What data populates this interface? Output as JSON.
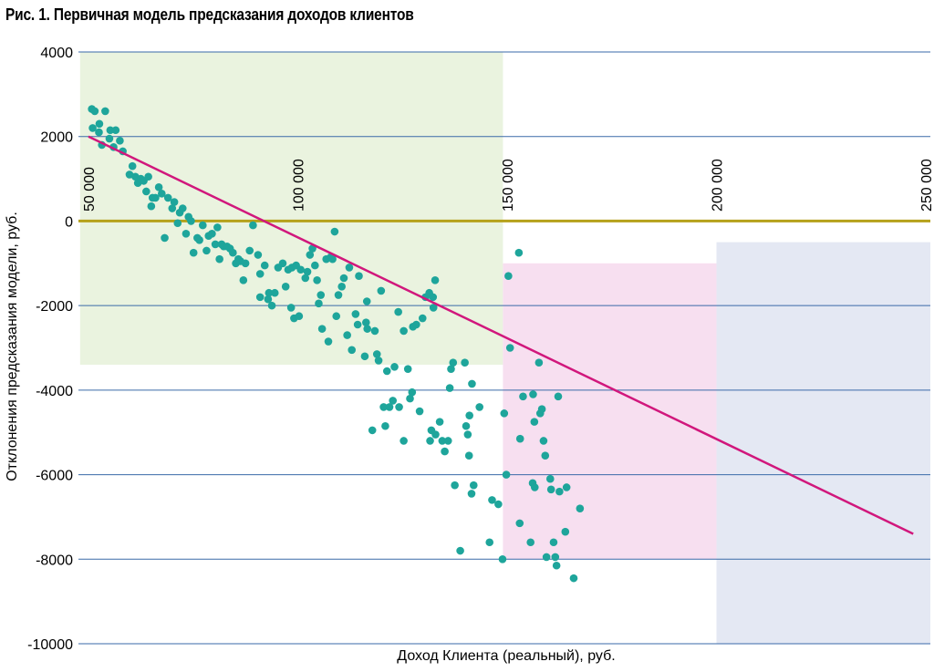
{
  "chart_data": {
    "type": "scatter",
    "title": "Рис. 1. Первичная модель предсказания доходов клиентов",
    "xlabel": "Доход Клиента (реальный), руб.",
    "ylabel": "Отклонения предсказания модели, руб.",
    "xlim": [
      48000,
      252000
    ],
    "ylim": [
      -10500,
      4000
    ],
    "yticks": [
      4000,
      2000,
      0,
      -2000,
      -4000,
      -6000,
      -8000,
      -10000
    ],
    "ytick_labels": [
      "4000",
      "2000",
      "0",
      "-2000",
      "-4000",
      "-6000",
      "-8000",
      "-10000"
    ],
    "xticks": [
      50000,
      100000,
      150000,
      200000,
      250000
    ],
    "xtick_labels": [
      "50 000",
      "100 000",
      "150 000",
      "200 000",
      "250 000"
    ],
    "grid": "horizontal",
    "colors": {
      "points": "#1ea59b",
      "trend": "#d1177c",
      "zero_line": "#b5a11a",
      "grid": "#3a6aa8",
      "region_low": "#eaf3df",
      "region_mid": "#f7dff0",
      "region_high": "#e4e8f3"
    },
    "regions": [
      {
        "name": "low-income",
        "x": [
          48000,
          149000
        ],
        "y": [
          -3400,
          4000
        ]
      },
      {
        "name": "mid-income",
        "x": [
          149000,
          200000
        ],
        "y": [
          -8000,
          -1000
        ]
      },
      {
        "name": "high-income",
        "x": [
          200000,
          252000
        ],
        "y": [
          -10500,
          -500
        ]
      }
    ],
    "trend": {
      "x": [
        50000,
        247000
      ],
      "y": [
        2000,
        -7400
      ]
    },
    "points": [
      {
        "x": 50800,
        "y": 2650
      },
      {
        "x": 51000,
        "y": 2200
      },
      {
        "x": 51500,
        "y": 2600
      },
      {
        "x": 52500,
        "y": 2100
      },
      {
        "x": 52600,
        "y": 2300
      },
      {
        "x": 53200,
        "y": 1800
      },
      {
        "x": 54000,
        "y": 2600
      },
      {
        "x": 55000,
        "y": 1950
      },
      {
        "x": 55200,
        "y": 2150
      },
      {
        "x": 56000,
        "y": 1750
      },
      {
        "x": 56500,
        "y": 2150
      },
      {
        "x": 57500,
        "y": 1900
      },
      {
        "x": 58200,
        "y": 1650
      },
      {
        "x": 59800,
        "y": 1100
      },
      {
        "x": 60500,
        "y": 1300
      },
      {
        "x": 61200,
        "y": 1050
      },
      {
        "x": 61800,
        "y": 900
      },
      {
        "x": 62500,
        "y": 1000
      },
      {
        "x": 63200,
        "y": 950
      },
      {
        "x": 63800,
        "y": 700
      },
      {
        "x": 64300,
        "y": 1050
      },
      {
        "x": 65000,
        "y": 350
      },
      {
        "x": 65300,
        "y": 550
      },
      {
        "x": 66000,
        "y": 550
      },
      {
        "x": 66800,
        "y": 800
      },
      {
        "x": 67500,
        "y": 650
      },
      {
        "x": 68200,
        "y": -400
      },
      {
        "x": 69000,
        "y": 550
      },
      {
        "x": 70000,
        "y": 300
      },
      {
        "x": 70500,
        "y": 450
      },
      {
        "x": 71300,
        "y": -50
      },
      {
        "x": 71800,
        "y": 200
      },
      {
        "x": 72500,
        "y": 300
      },
      {
        "x": 73300,
        "y": -300
      },
      {
        "x": 73900,
        "y": 100
      },
      {
        "x": 74500,
        "y": 0
      },
      {
        "x": 75100,
        "y": -750
      },
      {
        "x": 76000,
        "y": -400
      },
      {
        "x": 76500,
        "y": -450
      },
      {
        "x": 77300,
        "y": -100
      },
      {
        "x": 78200,
        "y": -700
      },
      {
        "x": 78700,
        "y": -350
      },
      {
        "x": 79500,
        "y": -300
      },
      {
        "x": 80300,
        "y": -550
      },
      {
        "x": 80800,
        "y": -150
      },
      {
        "x": 81300,
        "y": -900
      },
      {
        "x": 81800,
        "y": -550
      },
      {
        "x": 82300,
        "y": -600
      },
      {
        "x": 83100,
        "y": -600
      },
      {
        "x": 83800,
        "y": -650
      },
      {
        "x": 84500,
        "y": -750
      },
      {
        "x": 85200,
        "y": -1000
      },
      {
        "x": 85800,
        "y": -900
      },
      {
        "x": 86300,
        "y": -950
      },
      {
        "x": 87000,
        "y": -1400
      },
      {
        "x": 87500,
        "y": -1000
      },
      {
        "x": 88500,
        "y": -700
      },
      {
        "x": 89300,
        "y": -100
      },
      {
        "x": 90500,
        "y": -800
      },
      {
        "x": 91000,
        "y": -1250
      },
      {
        "x": 91000,
        "y": -1800
      },
      {
        "x": 92100,
        "y": -1050
      },
      {
        "x": 92900,
        "y": -1850
      },
      {
        "x": 93100,
        "y": -1700
      },
      {
        "x": 93800,
        "y": -2000
      },
      {
        "x": 94500,
        "y": -1700
      },
      {
        "x": 95300,
        "y": -1100
      },
      {
        "x": 96400,
        "y": -1000
      },
      {
        "x": 97100,
        "y": -1550
      },
      {
        "x": 97700,
        "y": -1150
      },
      {
        "x": 98400,
        "y": -2050
      },
      {
        "x": 98600,
        "y": -1100
      },
      {
        "x": 99100,
        "y": -2300
      },
      {
        "x": 99600,
        "y": -1050
      },
      {
        "x": 100300,
        "y": -2250
      },
      {
        "x": 100700,
        "y": -1150
      },
      {
        "x": 101800,
        "y": -1350
      },
      {
        "x": 102300,
        "y": -1200
      },
      {
        "x": 102900,
        "y": -800
      },
      {
        "x": 103500,
        "y": -650
      },
      {
        "x": 104100,
        "y": -1050
      },
      {
        "x": 104600,
        "y": -1400
      },
      {
        "x": 105000,
        "y": -1950
      },
      {
        "x": 105500,
        "y": -1750
      },
      {
        "x": 105800,
        "y": -2550
      },
      {
        "x": 106800,
        "y": -900
      },
      {
        "x": 107300,
        "y": -2850
      },
      {
        "x": 107900,
        "y": -850
      },
      {
        "x": 108300,
        "y": -900
      },
      {
        "x": 108800,
        "y": -250
      },
      {
        "x": 109200,
        "y": -2250
      },
      {
        "x": 109700,
        "y": -1750
      },
      {
        "x": 110500,
        "y": -1550
      },
      {
        "x": 111000,
        "y": -1350
      },
      {
        "x": 111800,
        "y": -2700
      },
      {
        "x": 112300,
        "y": -1100
      },
      {
        "x": 112900,
        "y": -3050
      },
      {
        "x": 113800,
        "y": -2200
      },
      {
        "x": 114300,
        "y": -2450
      },
      {
        "x": 114600,
        "y": -1300
      },
      {
        "x": 116000,
        "y": -3200
      },
      {
        "x": 116300,
        "y": -2400
      },
      {
        "x": 116500,
        "y": -1900
      },
      {
        "x": 116600,
        "y": -2550
      },
      {
        "x": 117800,
        "y": -4950
      },
      {
        "x": 118400,
        "y": -2600
      },
      {
        "x": 118900,
        "y": -3150
      },
      {
        "x": 119300,
        "y": -3300
      },
      {
        "x": 119900,
        "y": -1650
      },
      {
        "x": 120500,
        "y": -4400
      },
      {
        "x": 120900,
        "y": -4850
      },
      {
        "x": 121300,
        "y": -3550
      },
      {
        "x": 121900,
        "y": -4400
      },
      {
        "x": 122700,
        "y": -4250
      },
      {
        "x": 123100,
        "y": -3450
      },
      {
        "x": 124000,
        "y": -2150
      },
      {
        "x": 124200,
        "y": -4400
      },
      {
        "x": 125300,
        "y": -2600
      },
      {
        "x": 125300,
        "y": -5200
      },
      {
        "x": 126300,
        "y": -3500
      },
      {
        "x": 126800,
        "y": -4200
      },
      {
        "x": 127300,
        "y": -4050
      },
      {
        "x": 127500,
        "y": -2500
      },
      {
        "x": 128300,
        "y": -2450
      },
      {
        "x": 129100,
        "y": -4500
      },
      {
        "x": 129800,
        "y": -2300
      },
      {
        "x": 130500,
        "y": -1800
      },
      {
        "x": 131400,
        "y": -1700
      },
      {
        "x": 131600,
        "y": -5200
      },
      {
        "x": 131900,
        "y": -4950
      },
      {
        "x": 132300,
        "y": -1800
      },
      {
        "x": 132400,
        "y": -2050
      },
      {
        "x": 132800,
        "y": -1400
      },
      {
        "x": 132900,
        "y": -5050
      },
      {
        "x": 133900,
        "y": -4750
      },
      {
        "x": 134500,
        "y": -5200
      },
      {
        "x": 135100,
        "y": -5450
      },
      {
        "x": 135900,
        "y": -5200
      },
      {
        "x": 136300,
        "y": -3950
      },
      {
        "x": 136600,
        "y": -3500
      },
      {
        "x": 137100,
        "y": -3350
      },
      {
        "x": 137500,
        "y": -6250
      },
      {
        "x": 138800,
        "y": -7800
      },
      {
        "x": 139900,
        "y": -3350
      },
      {
        "x": 140200,
        "y": -4850
      },
      {
        "x": 140600,
        "y": -5050
      },
      {
        "x": 140900,
        "y": -5550
      },
      {
        "x": 141000,
        "y": -4600
      },
      {
        "x": 141500,
        "y": -6450
      },
      {
        "x": 141600,
        "y": -3850
      },
      {
        "x": 142000,
        "y": -6250
      },
      {
        "x": 143400,
        "y": -4400
      },
      {
        "x": 145800,
        "y": -7600
      },
      {
        "x": 146400,
        "y": -6600
      },
      {
        "x": 147900,
        "y": -6700
      },
      {
        "x": 148900,
        "y": -8000
      },
      {
        "x": 149300,
        "y": -4550
      },
      {
        "x": 149800,
        "y": -6000
      },
      {
        "x": 150300,
        "y": -1300
      },
      {
        "x": 150700,
        "y": -3000
      },
      {
        "x": 152800,
        "y": -750
      },
      {
        "x": 153000,
        "y": -7150
      },
      {
        "x": 153100,
        "y": -5150
      },
      {
        "x": 153800,
        "y": -4150
      },
      {
        "x": 155600,
        "y": -7600
      },
      {
        "x": 156100,
        "y": -6200
      },
      {
        "x": 156200,
        "y": -4100
      },
      {
        "x": 156500,
        "y": -4750
      },
      {
        "x": 156600,
        "y": -6300
      },
      {
        "x": 157600,
        "y": -3350
      },
      {
        "x": 157900,
        "y": -4550
      },
      {
        "x": 158300,
        "y": -4450
      },
      {
        "x": 158700,
        "y": -5200
      },
      {
        "x": 159100,
        "y": -5550
      },
      {
        "x": 159400,
        "y": -7950
      },
      {
        "x": 160300,
        "y": -6100
      },
      {
        "x": 160500,
        "y": -6350
      },
      {
        "x": 161100,
        "y": -7600
      },
      {
        "x": 161500,
        "y": -7950
      },
      {
        "x": 161800,
        "y": -8150
      },
      {
        "x": 162200,
        "y": -4150
      },
      {
        "x": 162500,
        "y": -6400
      },
      {
        "x": 163900,
        "y": -7350
      },
      {
        "x": 164200,
        "y": -6300
      },
      {
        "x": 165900,
        "y": -8450
      },
      {
        "x": 167400,
        "y": -6800
      }
    ]
  }
}
